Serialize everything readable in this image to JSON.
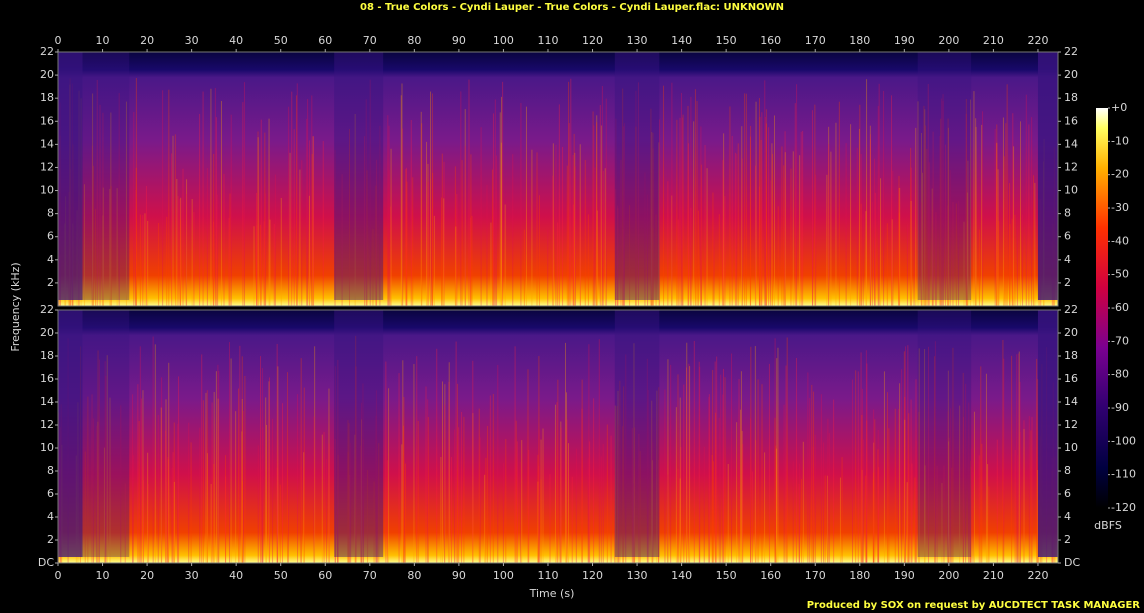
{
  "chart_data": {
    "type": "spectrogram",
    "title": "08 - True Colors - Cyndi Lauper - True Colors - Cyndi Lauper.flac: UNKNOWN",
    "xlabel": "Time (s)",
    "ylabel": "Frequency (kHz)",
    "xlim": [
      0,
      224.5
    ],
    "xticks": [
      0,
      10,
      20,
      30,
      40,
      50,
      60,
      70,
      80,
      90,
      100,
      110,
      120,
      130,
      140,
      150,
      160,
      170,
      180,
      190,
      200,
      210,
      220
    ],
    "channels": [
      {
        "ylim": [
          0,
          22
        ],
        "yticks": [
          2,
          4,
          6,
          8,
          10,
          12,
          14,
          16,
          18,
          20,
          22
        ]
      },
      {
        "ylim": [
          0,
          22
        ],
        "yticks": [
          {
            "value": 0,
            "label": "DC"
          },
          2,
          4,
          6,
          8,
          10,
          12,
          14,
          16,
          18,
          20,
          22
        ]
      }
    ],
    "colorbar": {
      "label": "dBFS",
      "lim": [
        -120,
        0
      ],
      "ticks": [
        {
          "value": 0,
          "label": "+0"
        },
        -10,
        -20,
        -30,
        -40,
        -50,
        -60,
        -70,
        -80,
        -90,
        -100,
        -110,
        -120
      ]
    },
    "footer": "Produced by SOX on request by AUCDTECT TASK MANAGER"
  }
}
